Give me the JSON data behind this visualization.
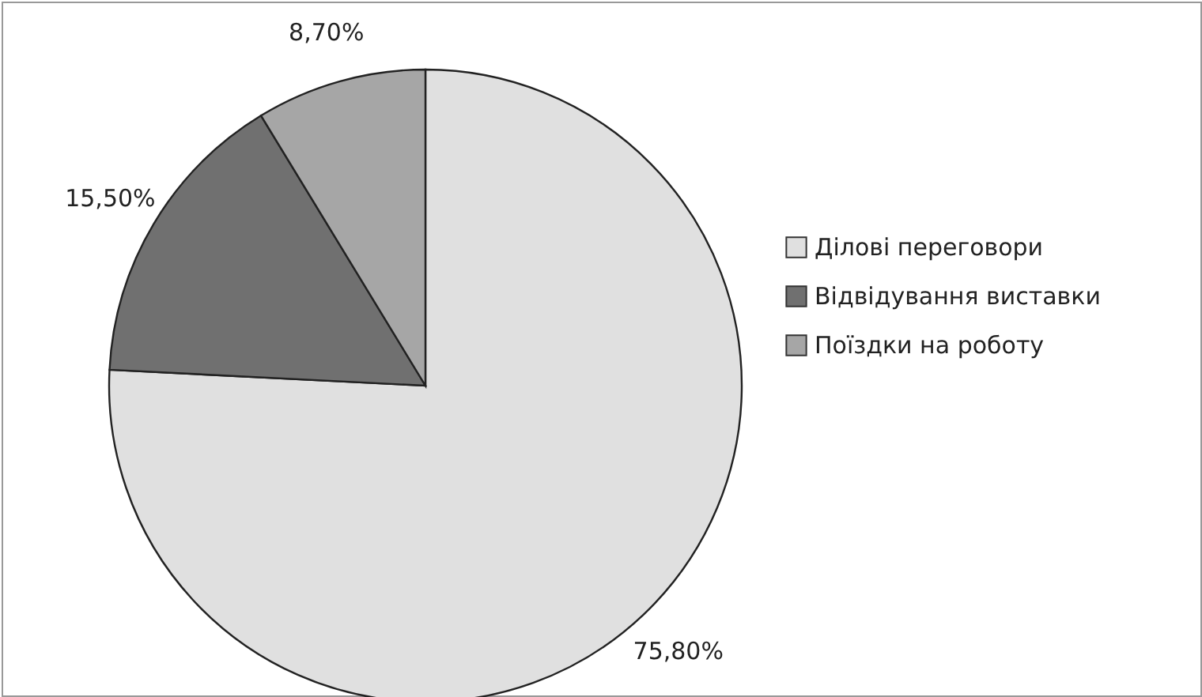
{
  "chart_data": {
    "type": "pie",
    "categories": [
      "Ділові переговори",
      "Відвідування виставки",
      "Поїздки на роботу"
    ],
    "values": [
      75.8,
      15.5,
      8.7
    ],
    "colors": [
      "#e0e0e0",
      "#707070",
      "#a6a6a6"
    ],
    "value_labels": [
      "75,80%",
      "15,50%",
      "8,70%"
    ],
    "legend": "right"
  }
}
